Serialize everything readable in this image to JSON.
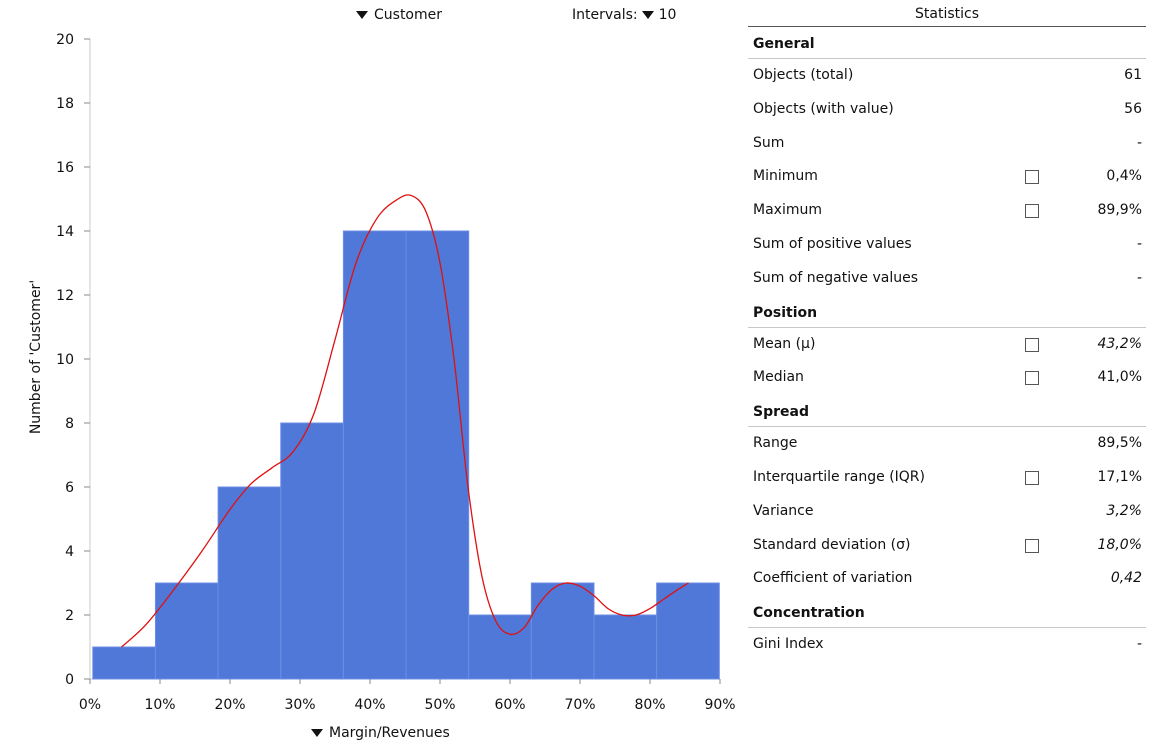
{
  "controls": {
    "series_selector": "Customer",
    "intervals_label": "Intervals:",
    "intervals_value": "10",
    "x_selector": "Margin/Revenues"
  },
  "chart_data": {
    "type": "bar",
    "subtype": "histogram",
    "xlabel": "Margin/Revenues",
    "ylabel": "Number of 'Customer'",
    "xlim": [
      0,
      90
    ],
    "ylim": [
      0,
      20
    ],
    "x_ticks": [
      "0%",
      "10%",
      "20%",
      "30%",
      "40%",
      "50%",
      "60%",
      "70%",
      "80%",
      "90%"
    ],
    "y_ticks": [
      "0",
      "2",
      "4",
      "6",
      "8",
      "10",
      "12",
      "14",
      "16",
      "18",
      "20"
    ],
    "y_tick_values": [
      0,
      2,
      4,
      6,
      8,
      10,
      12,
      14,
      16,
      18,
      20
    ],
    "bins": [
      {
        "from": 0.4,
        "to": 9.35,
        "count": 1
      },
      {
        "from": 9.35,
        "to": 18.3,
        "count": 3
      },
      {
        "from": 18.3,
        "to": 27.25,
        "count": 6
      },
      {
        "from": 27.25,
        "to": 36.2,
        "count": 8
      },
      {
        "from": 36.2,
        "to": 45.15,
        "count": 14
      },
      {
        "from": 45.15,
        "to": 54.1,
        "count": 14
      },
      {
        "from": 54.1,
        "to": 63.05,
        "count": 2
      },
      {
        "from": 63.05,
        "to": 72.0,
        "count": 3
      },
      {
        "from": 72.0,
        "to": 80.95,
        "count": 2
      },
      {
        "from": 80.95,
        "to": 89.9,
        "count": 3
      }
    ],
    "density_curve": [
      [
        4.5,
        1.0
      ],
      [
        8,
        1.7
      ],
      [
        12,
        2.8
      ],
      [
        16,
        4.0
      ],
      [
        20,
        5.3
      ],
      [
        23,
        6.1
      ],
      [
        26,
        6.6
      ],
      [
        29,
        7.1
      ],
      [
        32,
        8.3
      ],
      [
        35,
        10.6
      ],
      [
        38,
        13.0
      ],
      [
        41,
        14.4
      ],
      [
        44,
        15.0
      ],
      [
        46,
        15.1
      ],
      [
        48,
        14.6
      ],
      [
        50,
        13.0
      ],
      [
        52,
        10.0
      ],
      [
        54,
        6.0
      ],
      [
        56,
        3.2
      ],
      [
        58,
        1.8
      ],
      [
        60,
        1.4
      ],
      [
        62,
        1.6
      ],
      [
        64,
        2.3
      ],
      [
        66,
        2.8
      ],
      [
        68,
        3.0
      ],
      [
        70,
        2.9
      ],
      [
        72,
        2.6
      ],
      [
        74,
        2.2
      ],
      [
        76,
        2.0
      ],
      [
        78,
        2.0
      ],
      [
        80,
        2.2
      ],
      [
        82,
        2.5
      ],
      [
        84,
        2.8
      ],
      [
        85.5,
        3.0
      ]
    ],
    "bar_color": "#4F78D9",
    "curve_color": "#E01010"
  },
  "statistics": {
    "title": "Statistics",
    "groups": [
      {
        "name": "General",
        "rows": [
          {
            "label": "Objects (total)",
            "value": "61",
            "checkbox": false,
            "italic": false
          },
          {
            "label": "Objects (with value)",
            "value": "56",
            "checkbox": false,
            "italic": false
          },
          {
            "label": "Sum",
            "value": "-",
            "checkbox": false,
            "italic": false
          },
          {
            "label": "Minimum",
            "value": "0,4%",
            "checkbox": true,
            "italic": false
          },
          {
            "label": "Maximum",
            "value": "89,9%",
            "checkbox": true,
            "italic": false
          },
          {
            "label": "Sum of positive values",
            "value": "-",
            "checkbox": false,
            "italic": false
          },
          {
            "label": "Sum of negative values",
            "value": "-",
            "checkbox": false,
            "italic": false
          }
        ]
      },
      {
        "name": "Position",
        "rows": [
          {
            "label": "Mean (μ)",
            "value": "43,2%",
            "checkbox": true,
            "italic": true
          },
          {
            "label": "Median",
            "value": "41,0%",
            "checkbox": true,
            "italic": false
          }
        ]
      },
      {
        "name": "Spread",
        "rows": [
          {
            "label": "Range",
            "value": "89,5%",
            "checkbox": false,
            "italic": false
          },
          {
            "label": "Interquartile range (IQR)",
            "value": "17,1%",
            "checkbox": true,
            "italic": false
          },
          {
            "label": "Variance",
            "value": "3,2%",
            "checkbox": false,
            "italic": true
          },
          {
            "label": "Standard deviation (σ)",
            "value": "18,0%",
            "checkbox": true,
            "italic": true
          },
          {
            "label": "Coefficient of variation",
            "value": "0,42",
            "checkbox": false,
            "italic": true
          }
        ]
      },
      {
        "name": "Concentration",
        "rows": [
          {
            "label": "Gini Index",
            "value": "-",
            "checkbox": false,
            "italic": false
          }
        ]
      }
    ]
  }
}
